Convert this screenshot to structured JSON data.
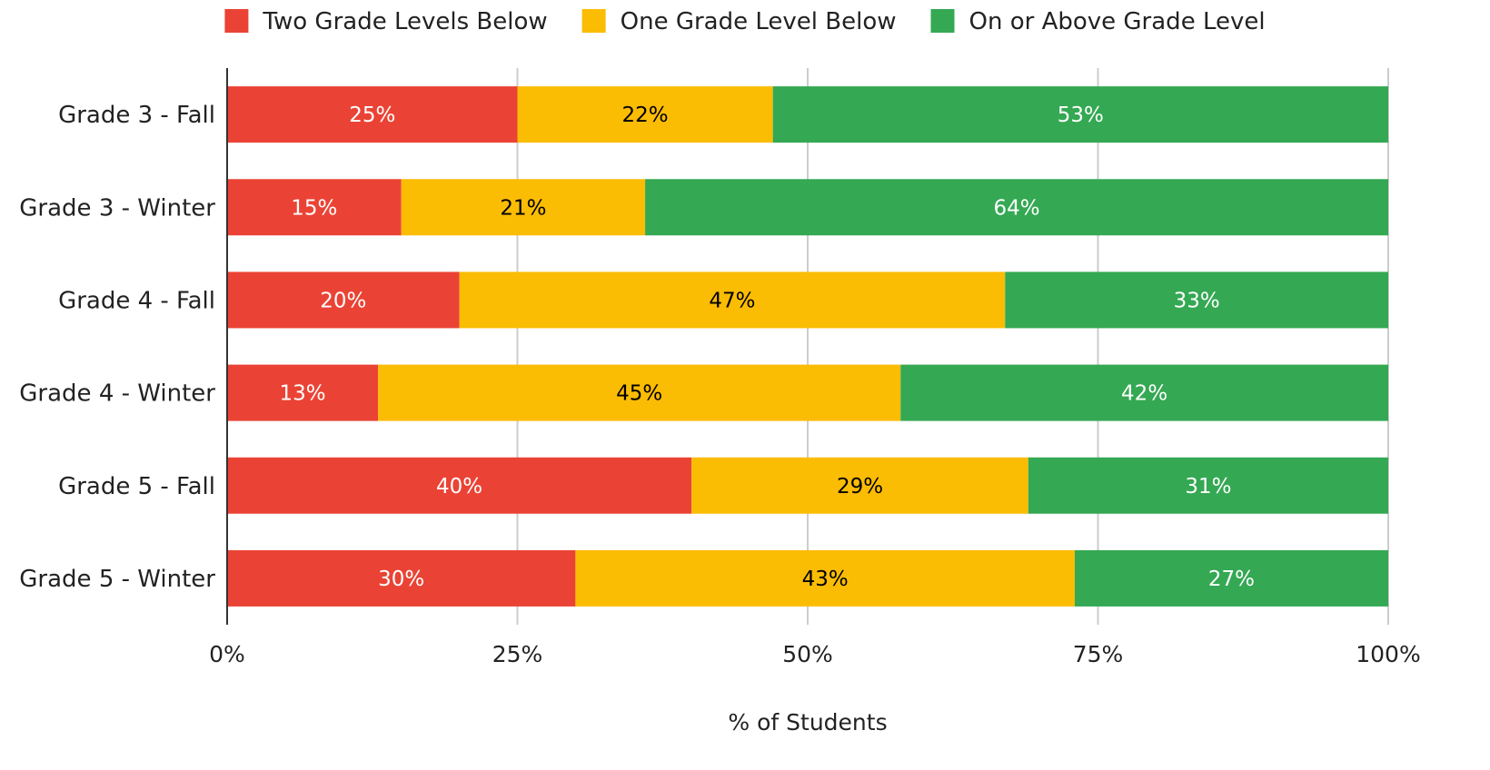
{
  "chart_data": {
    "type": "bar",
    "orientation": "horizontal",
    "stacked": true,
    "categories": [
      "Grade 3 - Fall",
      "Grade 3 - Winter",
      "Grade 4 - Fall",
      "Grade 4 - Winter",
      "Grade 5 - Fall",
      "Grade 5 - Winter"
    ],
    "series": [
      {
        "name": "Two Grade Levels Below",
        "color": "#ea4335",
        "label_color": "#ffffff",
        "values": [
          25,
          15,
          20,
          13,
          40,
          30
        ]
      },
      {
        "name": "One Grade Level Below",
        "color": "#fbbc04",
        "label_color": "#000000",
        "values": [
          22,
          21,
          47,
          45,
          29,
          43
        ]
      },
      {
        "name": "On or Above Grade Level",
        "color": "#34a853",
        "label_color": "#ffffff",
        "values": [
          53,
          64,
          33,
          42,
          31,
          27
        ]
      }
    ],
    "value_suffix": "%",
    "xlabel": "% of Students",
    "ylabel": "",
    "xlim": [
      0,
      100
    ],
    "xticks": [
      0,
      25,
      50,
      75,
      100
    ],
    "xtick_labels": [
      "0%",
      "25%",
      "50%",
      "75%",
      "100%"
    ],
    "grid": true,
    "legend_position": "top"
  }
}
